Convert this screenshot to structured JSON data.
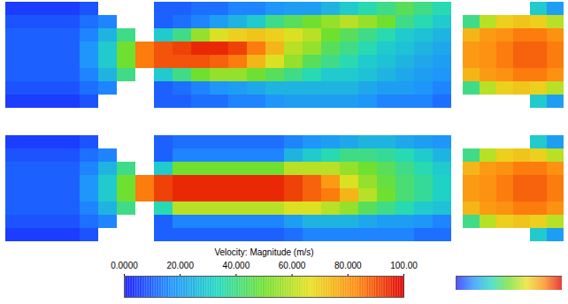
{
  "chart_data": {
    "type": "heatmap",
    "tick_labels": false,
    "colorbar": {
      "label": "Velocity: Magnitude (m/s)",
      "range": [
        0,
        100
      ],
      "ticks": [
        {
          "value": 0,
          "label": "0.0000"
        },
        {
          "value": 20,
          "label": "20.000"
        },
        {
          "value": 40,
          "label": "40.000"
        },
        {
          "value": 60,
          "label": "60.000"
        },
        {
          "value": 80,
          "label": "80.000"
        },
        {
          "value": 100,
          "label": "100.00"
        }
      ]
    },
    "panels": [
      {
        "cells": [
          [
            5,
            8,
            10,
            10,
            10,
            10,
            8,
            5
          ],
          [
            5,
            8,
            10,
            10,
            10,
            10,
            8,
            5
          ],
          [
            5,
            8,
            10,
            10,
            10,
            10,
            8,
            5
          ],
          [
            5,
            8,
            10,
            10,
            10,
            10,
            8,
            5
          ],
          [
            8,
            12,
            15,
            18,
            18,
            15,
            12,
            8
          ],
          [
            null,
            15,
            25,
            30,
            30,
            25,
            15,
            null
          ],
          [
            null,
            null,
            40,
            50,
            50,
            40,
            null,
            null
          ],
          [
            null,
            null,
            null,
            85,
            85,
            null,
            null,
            null
          ],
          [
            10,
            10,
            30,
            90,
            90,
            30,
            10,
            10
          ],
          [
            10,
            12,
            40,
            92,
            90,
            40,
            12,
            10
          ],
          [
            12,
            15,
            55,
            95,
            90,
            50,
            15,
            12
          ],
          [
            12,
            20,
            65,
            95,
            88,
            55,
            18,
            12
          ],
          [
            15,
            25,
            70,
            92,
            85,
            55,
            20,
            15
          ],
          [
            15,
            30,
            72,
            85,
            75,
            50,
            22,
            15
          ],
          [
            18,
            40,
            70,
            75,
            65,
            45,
            25,
            18
          ],
          [
            20,
            45,
            65,
            60,
            55,
            40,
            25,
            20
          ],
          [
            20,
            50,
            60,
            55,
            45,
            35,
            25,
            20
          ],
          [
            25,
            55,
            50,
            45,
            40,
            30,
            25,
            20
          ],
          [
            30,
            60,
            45,
            40,
            35,
            30,
            25,
            20
          ],
          [
            35,
            55,
            40,
            35,
            30,
            28,
            22,
            18
          ],
          [
            40,
            50,
            35,
            30,
            28,
            25,
            20,
            15
          ],
          [
            45,
            40,
            30,
            28,
            25,
            22,
            20,
            15
          ],
          [
            40,
            35,
            28,
            25,
            22,
            20,
            18,
            15
          ],
          [
            35,
            30,
            25,
            22,
            20,
            18,
            15,
            12
          ]
        ]
      },
      {
        "cells": [
          [
            null,
            40,
            75,
            80,
            80,
            75,
            40,
            null
          ],
          [
            null,
            60,
            80,
            82,
            82,
            80,
            60,
            null
          ],
          [
            null,
            70,
            82,
            85,
            85,
            82,
            70,
            null
          ],
          [
            null,
            72,
            85,
            88,
            88,
            85,
            72,
            null
          ],
          [
            30,
            70,
            85,
            88,
            88,
            85,
            70,
            30
          ],
          [
            20,
            60,
            82,
            85,
            85,
            82,
            60,
            20
          ]
        ]
      },
      {
        "cells": [
          [
            5,
            8,
            10,
            10,
            10,
            10,
            8,
            5
          ],
          [
            5,
            8,
            10,
            10,
            10,
            10,
            8,
            5
          ],
          [
            5,
            8,
            10,
            10,
            10,
            10,
            8,
            5
          ],
          [
            5,
            8,
            10,
            10,
            10,
            10,
            8,
            5
          ],
          [
            8,
            12,
            15,
            18,
            18,
            15,
            12,
            8
          ],
          [
            null,
            15,
            25,
            30,
            30,
            25,
            15,
            null
          ],
          [
            null,
            null,
            40,
            50,
            50,
            40,
            null,
            null
          ],
          [
            null,
            null,
            null,
            85,
            85,
            null,
            null,
            null
          ],
          [
            10,
            10,
            30,
            92,
            92,
            35,
            10,
            10
          ],
          [
            12,
            15,
            50,
            95,
            95,
            60,
            15,
            10
          ],
          [
            12,
            15,
            50,
            95,
            95,
            60,
            15,
            10
          ],
          [
            12,
            15,
            50,
            95,
            95,
            60,
            15,
            10
          ],
          [
            12,
            15,
            50,
            95,
            95,
            60,
            15,
            10
          ],
          [
            12,
            15,
            50,
            95,
            95,
            60,
            15,
            10
          ],
          [
            12,
            15,
            50,
            95,
            95,
            60,
            15,
            10
          ],
          [
            15,
            25,
            60,
            92,
            92,
            65,
            20,
            12
          ],
          [
            18,
            30,
            60,
            88,
            88,
            65,
            25,
            15
          ],
          [
            20,
            35,
            60,
            80,
            85,
            60,
            25,
            15
          ],
          [
            22,
            40,
            55,
            65,
            75,
            55,
            25,
            15
          ],
          [
            25,
            40,
            50,
            55,
            60,
            45,
            22,
            15
          ],
          [
            25,
            38,
            45,
            48,
            50,
            40,
            20,
            15
          ],
          [
            22,
            35,
            40,
            42,
            42,
            35,
            20,
            15
          ],
          [
            20,
            30,
            35,
            38,
            38,
            30,
            18,
            12
          ],
          [
            18,
            25,
            30,
            32,
            32,
            28,
            15,
            12
          ]
        ]
      },
      {
        "cells": [
          [
            null,
            40,
            75,
            80,
            80,
            75,
            40,
            null
          ],
          [
            null,
            60,
            80,
            82,
            82,
            80,
            60,
            null
          ],
          [
            null,
            70,
            82,
            85,
            85,
            82,
            70,
            null
          ],
          [
            null,
            72,
            85,
            88,
            88,
            85,
            72,
            null
          ],
          [
            30,
            70,
            85,
            88,
            88,
            85,
            70,
            30
          ],
          [
            20,
            60,
            82,
            85,
            85,
            82,
            60,
            20
          ]
        ]
      }
    ]
  }
}
